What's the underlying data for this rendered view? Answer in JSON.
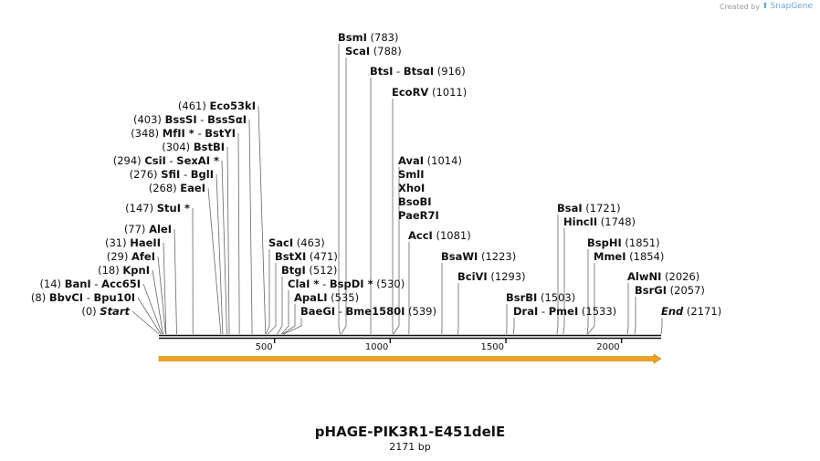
{
  "credit": {
    "prefix": "Created by",
    "brand": "SnapGene"
  },
  "map": {
    "title": "pHAGE-PIK3R1-E451delE",
    "length_label": "2171 bp",
    "length": 2171,
    "axis_ticks": [
      500,
      1000,
      1500,
      2000
    ],
    "feature": {
      "start": 1,
      "end": 2171,
      "direction": "forward",
      "color": "#f0a020"
    }
  },
  "left_labels": [
    {
      "pos": 461,
      "pos_text": "(461)",
      "names": [
        "Eco53kI"
      ]
    },
    {
      "pos": 403,
      "pos_text": "(403)",
      "names": [
        "BssSI",
        "BssSαI"
      ]
    },
    {
      "pos": 348,
      "pos_text": "(348)",
      "names": [
        "MfII *",
        "BstYI"
      ]
    },
    {
      "pos": 304,
      "pos_text": "(304)",
      "names": [
        "BstBI"
      ]
    },
    {
      "pos": 294,
      "pos_text": "(294)",
      "names": [
        "CsiI",
        "SexAI *"
      ]
    },
    {
      "pos": 276,
      "pos_text": "(276)",
      "names": [
        "SfiI",
        "BglI"
      ]
    },
    {
      "pos": 268,
      "pos_text": "(268)",
      "names": [
        "EaeI"
      ]
    },
    {
      "pos": 147,
      "pos_text": "(147)",
      "names": [
        "StuI *"
      ]
    },
    {
      "pos": 77,
      "pos_text": "(77)",
      "names": [
        "AleI"
      ]
    },
    {
      "pos": 31,
      "pos_text": "(31)",
      "names": [
        "HaeII"
      ]
    },
    {
      "pos": 29,
      "pos_text": "(29)",
      "names": [
        "AfeI"
      ]
    },
    {
      "pos": 18,
      "pos_text": "(18)",
      "names": [
        "KpnI"
      ]
    },
    {
      "pos": 14,
      "pos_text": "(14)",
      "names": [
        "BanI",
        "Acc65I"
      ]
    },
    {
      "pos": 8,
      "pos_text": "(8)",
      "names": [
        "BbvCI",
        "Bpu10I"
      ]
    },
    {
      "pos": 0,
      "pos_text": "(0)",
      "names": [
        "Start"
      ],
      "italic": true
    }
  ],
  "right_labels": [
    {
      "pos": 783,
      "pos_text": "(783)",
      "names": [
        "BsmI"
      ]
    },
    {
      "pos": 788,
      "pos_text": "(788)",
      "names": [
        "ScaI"
      ]
    },
    {
      "pos": 916,
      "pos_text": "(916)",
      "names": [
        "BtsI",
        "BtsαI"
      ]
    },
    {
      "pos": 1011,
      "pos_text": "(1011)",
      "names": [
        "EcoRV"
      ]
    },
    {
      "pos": 1014,
      "pos_text": "(1014)",
      "names": [
        "AvaI"
      ]
    },
    {
      "pos": 1014,
      "pos_text": "",
      "names": [
        "SmlI"
      ]
    },
    {
      "pos": 1014,
      "pos_text": "",
      "names": [
        "XhoI"
      ]
    },
    {
      "pos": 1014,
      "pos_text": "",
      "names": [
        "BsoBI"
      ]
    },
    {
      "pos": 1014,
      "pos_text": "",
      "names": [
        "PaeR7I"
      ]
    },
    {
      "pos": 1081,
      "pos_text": "(1081)",
      "names": [
        "AccI"
      ]
    },
    {
      "pos": 463,
      "pos_text": "(463)",
      "names": [
        "SacI"
      ]
    },
    {
      "pos": 471,
      "pos_text": "(471)",
      "names": [
        "BstXI"
      ]
    },
    {
      "pos": 512,
      "pos_text": "(512)",
      "names": [
        "BtgI"
      ]
    },
    {
      "pos": 530,
      "pos_text": "(530)",
      "names": [
        "ClaI *",
        "BspDI *"
      ]
    },
    {
      "pos": 535,
      "pos_text": "(535)",
      "names": [
        "ApaLI"
      ]
    },
    {
      "pos": 539,
      "pos_text": "(539)",
      "names": [
        "BaeGI",
        "Bme1580I"
      ]
    },
    {
      "pos": 1223,
      "pos_text": "(1223)",
      "names": [
        "BsaWI"
      ]
    },
    {
      "pos": 1293,
      "pos_text": "(1293)",
      "names": [
        "BciVI"
      ]
    },
    {
      "pos": 1503,
      "pos_text": "(1503)",
      "names": [
        "BsrBI"
      ]
    },
    {
      "pos": 1533,
      "pos_text": "(1533)",
      "names": [
        "DraI",
        "PmeI"
      ]
    },
    {
      "pos": 1721,
      "pos_text": "(1721)",
      "names": [
        "BsaI"
      ]
    },
    {
      "pos": 1748,
      "pos_text": "(1748)",
      "names": [
        "HincII"
      ]
    },
    {
      "pos": 1851,
      "pos_text": "(1851)",
      "names": [
        "BspHI"
      ]
    },
    {
      "pos": 1854,
      "pos_text": "(1854)",
      "names": [
        "MmeI"
      ]
    },
    {
      "pos": 2026,
      "pos_text": "(2026)",
      "names": [
        "AlwNI"
      ]
    },
    {
      "pos": 2057,
      "pos_text": "(2057)",
      "names": [
        "BsrGI"
      ]
    },
    {
      "pos": 2171,
      "pos_text": "(2171)",
      "names": [
        "End"
      ],
      "italic": true
    }
  ]
}
